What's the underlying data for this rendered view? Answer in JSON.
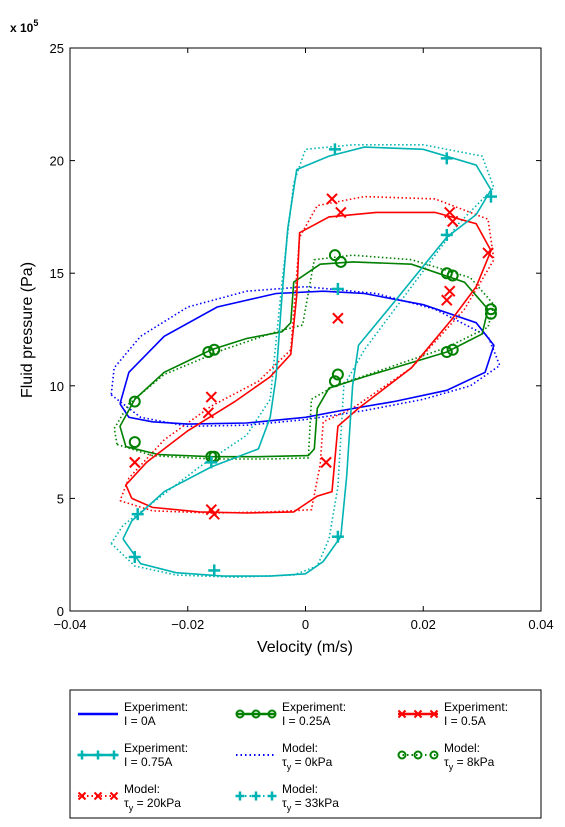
{
  "chart_data": {
    "type": "line",
    "title": "",
    "xlabel": "Velocity (m/s)",
    "ylabel": "Fluid pressure (Pa)",
    "y_exponent_label": "x 10",
    "y_exponent_power": "5",
    "xlim": [
      -0.04,
      0.04
    ],
    "ylim": [
      0,
      25
    ],
    "y_scale_factor": 100000,
    "xticks": [
      -0.04,
      -0.02,
      0,
      0.02,
      0.04
    ],
    "xtick_labels": [
      "−0.04",
      "−0.02",
      "0",
      "0.02",
      "0.04"
    ],
    "yticks": [
      0,
      5,
      10,
      15,
      20,
      25
    ],
    "ytick_labels": [
      "0",
      "5",
      "10",
      "15",
      "20",
      "25"
    ],
    "grid": false,
    "legend_placement": "below",
    "series": [
      {
        "name": "Experiment: I = 0A",
        "kind": "experiment",
        "color": "#0000ff",
        "marker": "none",
        "points": [
          [
            -0.0315,
            9.2
          ],
          [
            -0.03,
            8.6
          ],
          [
            -0.026,
            8.4
          ],
          [
            -0.02,
            8.3
          ],
          [
            -0.01,
            8.35
          ],
          [
            0.0,
            8.6
          ],
          [
            0.006,
            8.9
          ],
          [
            0.015,
            9.3
          ],
          [
            0.024,
            9.8
          ],
          [
            0.0305,
            10.6
          ],
          [
            0.032,
            11.8
          ],
          [
            0.029,
            12.8
          ],
          [
            0.02,
            13.6
          ],
          [
            0.01,
            14.1
          ],
          [
            0.003,
            14.2
          ],
          [
            -0.005,
            14.1
          ],
          [
            -0.015,
            13.5
          ],
          [
            -0.024,
            12.2
          ],
          [
            -0.03,
            10.6
          ],
          [
            -0.0315,
            9.2
          ]
        ]
      },
      {
        "name": "Experiment: I = 0.25A",
        "kind": "experiment",
        "color": "#008000",
        "marker": "circle",
        "points": [
          [
            -0.0305,
            7.3
          ],
          [
            -0.025,
            6.95
          ],
          [
            -0.016,
            6.85
          ],
          [
            -0.008,
            6.85
          ],
          [
            0.0005,
            6.9
          ],
          [
            0.0015,
            7.2
          ],
          [
            0.002,
            9.0
          ],
          [
            0.004,
            9.9
          ],
          [
            0.01,
            10.4
          ],
          [
            0.024,
            11.5
          ],
          [
            0.03,
            12.3
          ],
          [
            0.031,
            13.4
          ],
          [
            0.027,
            14.6
          ],
          [
            0.018,
            15.4
          ],
          [
            0.008,
            15.5
          ],
          [
            0.0025,
            15.4
          ],
          [
            -0.002,
            14.6
          ],
          [
            -0.0025,
            12.8
          ],
          [
            -0.004,
            12.4
          ],
          [
            -0.01,
            12.1
          ],
          [
            -0.016,
            11.6
          ],
          [
            -0.024,
            10.6
          ],
          [
            -0.029,
            9.4
          ],
          [
            -0.0315,
            8.2
          ],
          [
            -0.0305,
            7.3
          ]
        ],
        "markers": [
          [
            -0.029,
            9.3
          ],
          [
            -0.0165,
            11.5
          ],
          [
            -0.0155,
            11.6
          ],
          [
            -0.029,
            7.5
          ],
          [
            -0.016,
            6.85
          ],
          [
            -0.0155,
            6.85
          ],
          [
            0.005,
            10.2
          ],
          [
            0.0055,
            10.5
          ],
          [
            0.024,
            11.5
          ],
          [
            0.025,
            11.6
          ],
          [
            0.0315,
            13.2
          ],
          [
            0.0315,
            13.4
          ],
          [
            0.024,
            15.0
          ],
          [
            0.025,
            14.9
          ],
          [
            0.005,
            15.8
          ],
          [
            0.006,
            15.5
          ]
        ]
      },
      {
        "name": "Experiment: I = 0.5A",
        "kind": "experiment",
        "color": "#ff0000",
        "marker": "x",
        "points": [
          [
            -0.0295,
            5.0
          ],
          [
            -0.026,
            4.6
          ],
          [
            -0.018,
            4.4
          ],
          [
            -0.01,
            4.35
          ],
          [
            -0.002,
            4.4
          ],
          [
            0.002,
            5.1
          ],
          [
            0.0045,
            5.3
          ],
          [
            0.0055,
            8.2
          ],
          [
            0.009,
            9.0
          ],
          [
            0.018,
            10.8
          ],
          [
            0.025,
            13.0
          ],
          [
            0.029,
            14.4
          ],
          [
            0.0315,
            16.0
          ],
          [
            0.029,
            17.2
          ],
          [
            0.022,
            17.7
          ],
          [
            0.012,
            17.7
          ],
          [
            0.004,
            17.5
          ],
          [
            -0.001,
            16.8
          ],
          [
            -0.0015,
            14.0
          ],
          [
            -0.0025,
            11.4
          ],
          [
            -0.006,
            10.4
          ],
          [
            -0.012,
            9.3
          ],
          [
            -0.02,
            8.0
          ],
          [
            -0.027,
            6.6
          ],
          [
            -0.0305,
            5.6
          ],
          [
            -0.0295,
            5.0
          ]
        ],
        "markers": [
          [
            -0.029,
            6.6
          ],
          [
            -0.016,
            4.5
          ],
          [
            -0.0155,
            4.3
          ],
          [
            0.0055,
            13.0
          ],
          [
            0.0035,
            6.6
          ],
          [
            0.0245,
            14.2
          ],
          [
            0.024,
            13.8
          ],
          [
            0.031,
            15.9
          ],
          [
            0.0245,
            17.7
          ],
          [
            0.025,
            17.3
          ],
          [
            0.0045,
            18.3
          ],
          [
            0.006,
            17.7
          ],
          [
            -0.016,
            9.5
          ],
          [
            -0.0165,
            8.8
          ]
        ]
      },
      {
        "name": "Experiment: I = 0.75A",
        "kind": "experiment",
        "color": "#00b3b3",
        "marker": "plus",
        "points": [
          [
            -0.031,
            3.2
          ],
          [
            -0.028,
            2.1
          ],
          [
            -0.022,
            1.7
          ],
          [
            -0.014,
            1.55
          ],
          [
            -0.006,
            1.55
          ],
          [
            0.0,
            1.65
          ],
          [
            0.003,
            2.2
          ],
          [
            0.006,
            3.3
          ],
          [
            0.007,
            6.0
          ],
          [
            0.008,
            10.0
          ],
          [
            0.009,
            11.8
          ],
          [
            0.015,
            13.7
          ],
          [
            0.024,
            16.6
          ],
          [
            0.029,
            17.6
          ],
          [
            0.0315,
            18.7
          ],
          [
            0.029,
            19.8
          ],
          [
            0.02,
            20.5
          ],
          [
            0.01,
            20.6
          ],
          [
            0.004,
            20.2
          ],
          [
            -0.0015,
            19.6
          ],
          [
            -0.003,
            17.0
          ],
          [
            -0.004,
            14.0
          ],
          [
            -0.005,
            10.4
          ],
          [
            -0.006,
            8.6
          ],
          [
            -0.008,
            7.2
          ],
          [
            -0.016,
            6.4
          ],
          [
            -0.024,
            5.3
          ],
          [
            -0.0295,
            4.0
          ],
          [
            -0.031,
            3.2
          ]
        ],
        "markers": [
          [
            -0.0285,
            4.3
          ],
          [
            -0.029,
            2.4
          ],
          [
            -0.0155,
            1.8
          ],
          [
            0.0055,
            3.3
          ],
          [
            0.0055,
            14.3
          ],
          [
            0.024,
            16.7
          ],
          [
            0.0315,
            18.4
          ],
          [
            0.024,
            20.1
          ],
          [
            0.005,
            20.5
          ],
          [
            -0.016,
            6.6
          ]
        ]
      },
      {
        "name": "Model: τy = 0kPa",
        "kind": "model",
        "color": "#0000ff",
        "marker": "none",
        "points": [
          [
            -0.033,
            9.6
          ],
          [
            -0.028,
            8.6
          ],
          [
            -0.02,
            8.2
          ],
          [
            -0.01,
            8.25
          ],
          [
            0.0,
            8.5
          ],
          [
            0.01,
            8.9
          ],
          [
            0.02,
            9.4
          ],
          [
            0.028,
            10.0
          ],
          [
            0.033,
            10.9
          ],
          [
            0.031,
            12.2
          ],
          [
            0.022,
            13.4
          ],
          [
            0.012,
            14.1
          ],
          [
            0.0,
            14.4
          ],
          [
            -0.01,
            14.2
          ],
          [
            -0.02,
            13.5
          ],
          [
            -0.028,
            12.2
          ],
          [
            -0.0325,
            10.8
          ],
          [
            -0.033,
            9.6
          ]
        ]
      },
      {
        "name": "Model: τy = 8kPa",
        "kind": "model",
        "color": "#008000",
        "marker": "circle",
        "points": [
          [
            -0.032,
            7.4
          ],
          [
            -0.026,
            6.9
          ],
          [
            -0.016,
            6.75
          ],
          [
            -0.006,
            6.75
          ],
          [
            0.0005,
            6.8
          ],
          [
            0.001,
            9.4
          ],
          [
            0.005,
            10.0
          ],
          [
            0.014,
            10.8
          ],
          [
            0.024,
            11.7
          ],
          [
            0.031,
            12.6
          ],
          [
            0.032,
            13.6
          ],
          [
            0.028,
            14.8
          ],
          [
            0.018,
            15.6
          ],
          [
            0.008,
            15.8
          ],
          [
            0.0015,
            15.6
          ],
          [
            -0.0005,
            12.7
          ],
          [
            -0.005,
            12.4
          ],
          [
            -0.014,
            11.6
          ],
          [
            -0.024,
            10.5
          ],
          [
            -0.03,
            9.2
          ],
          [
            -0.0325,
            8.1
          ],
          [
            -0.032,
            7.4
          ]
        ]
      },
      {
        "name": "Model: τy = 20kPa",
        "kind": "model",
        "color": "#ff0000",
        "marker": "x",
        "points": [
          [
            -0.0315,
            4.9
          ],
          [
            -0.026,
            4.45
          ],
          [
            -0.016,
            4.35
          ],
          [
            -0.006,
            4.4
          ],
          [
            0.001,
            4.5
          ],
          [
            0.0025,
            6.5
          ],
          [
            0.003,
            8.4
          ],
          [
            0.008,
            9.0
          ],
          [
            0.018,
            10.8
          ],
          [
            0.027,
            13.4
          ],
          [
            0.032,
            15.6
          ],
          [
            0.031,
            17.4
          ],
          [
            0.022,
            18.3
          ],
          [
            0.01,
            18.4
          ],
          [
            0.002,
            18.0
          ],
          [
            -0.001,
            16.6
          ],
          [
            -0.0025,
            11.6
          ],
          [
            -0.008,
            10.2
          ],
          [
            -0.016,
            9.1
          ],
          [
            -0.024,
            7.6
          ],
          [
            -0.03,
            5.9
          ],
          [
            -0.0315,
            4.9
          ]
        ]
      },
      {
        "name": "Model: τy = 33kPa",
        "kind": "model",
        "color": "#00b3b3",
        "marker": "plus",
        "points": [
          [
            -0.033,
            3.0
          ],
          [
            -0.029,
            2.0
          ],
          [
            -0.022,
            1.6
          ],
          [
            -0.012,
            1.5
          ],
          [
            -0.002,
            1.6
          ],
          [
            0.002,
            2.0
          ],
          [
            0.004,
            3.2
          ],
          [
            0.0055,
            5.5
          ],
          [
            0.0065,
            10.0
          ],
          [
            0.01,
            11.6
          ],
          [
            0.018,
            14.4
          ],
          [
            0.026,
            17.2
          ],
          [
            0.032,
            18.8
          ],
          [
            0.03,
            20.2
          ],
          [
            0.02,
            20.7
          ],
          [
            0.008,
            20.7
          ],
          [
            0.0,
            20.5
          ],
          [
            -0.002,
            19.0
          ],
          [
            -0.004,
            14.6
          ],
          [
            -0.006,
            9.4
          ],
          [
            -0.01,
            7.8
          ],
          [
            -0.018,
            6.4
          ],
          [
            -0.026,
            4.8
          ],
          [
            -0.031,
            3.8
          ],
          [
            -0.033,
            3.0
          ]
        ]
      }
    ]
  },
  "legend": {
    "entries": [
      {
        "line1": "Experiment:",
        "line2": "I = 0A",
        "color": "#0000ff",
        "style": "experiment",
        "marker": "none"
      },
      {
        "line1": "Experiment:",
        "line2": "I = 0.25A",
        "color": "#008000",
        "style": "experiment",
        "marker": "circle"
      },
      {
        "line1": "Experiment:",
        "line2": "I = 0.5A",
        "color": "#ff0000",
        "style": "experiment",
        "marker": "x"
      },
      {
        "line1": "Experiment:",
        "line2": "I = 0.75A",
        "color": "#00b3b3",
        "style": "experiment",
        "marker": "plus"
      },
      {
        "line1": "Model:",
        "line2": "τ",
        "sub": "y",
        "line2b": " = 0kPa",
        "color": "#0000ff",
        "style": "model",
        "marker": "none"
      },
      {
        "line1": "Model:",
        "line2": "τ",
        "sub": "y",
        "line2b": " = 8kPa",
        "color": "#008000",
        "style": "model",
        "marker": "circle"
      },
      {
        "line1": "Model:",
        "line2": "τ",
        "sub": "y",
        "line2b": " = 20kPa",
        "color": "#ff0000",
        "style": "model",
        "marker": "x"
      },
      {
        "line1": "Model:",
        "line2": "τ",
        "sub": "y",
        "line2b": " = 33kPa",
        "color": "#00b3b3",
        "style": "model",
        "marker": "plus"
      }
    ]
  }
}
